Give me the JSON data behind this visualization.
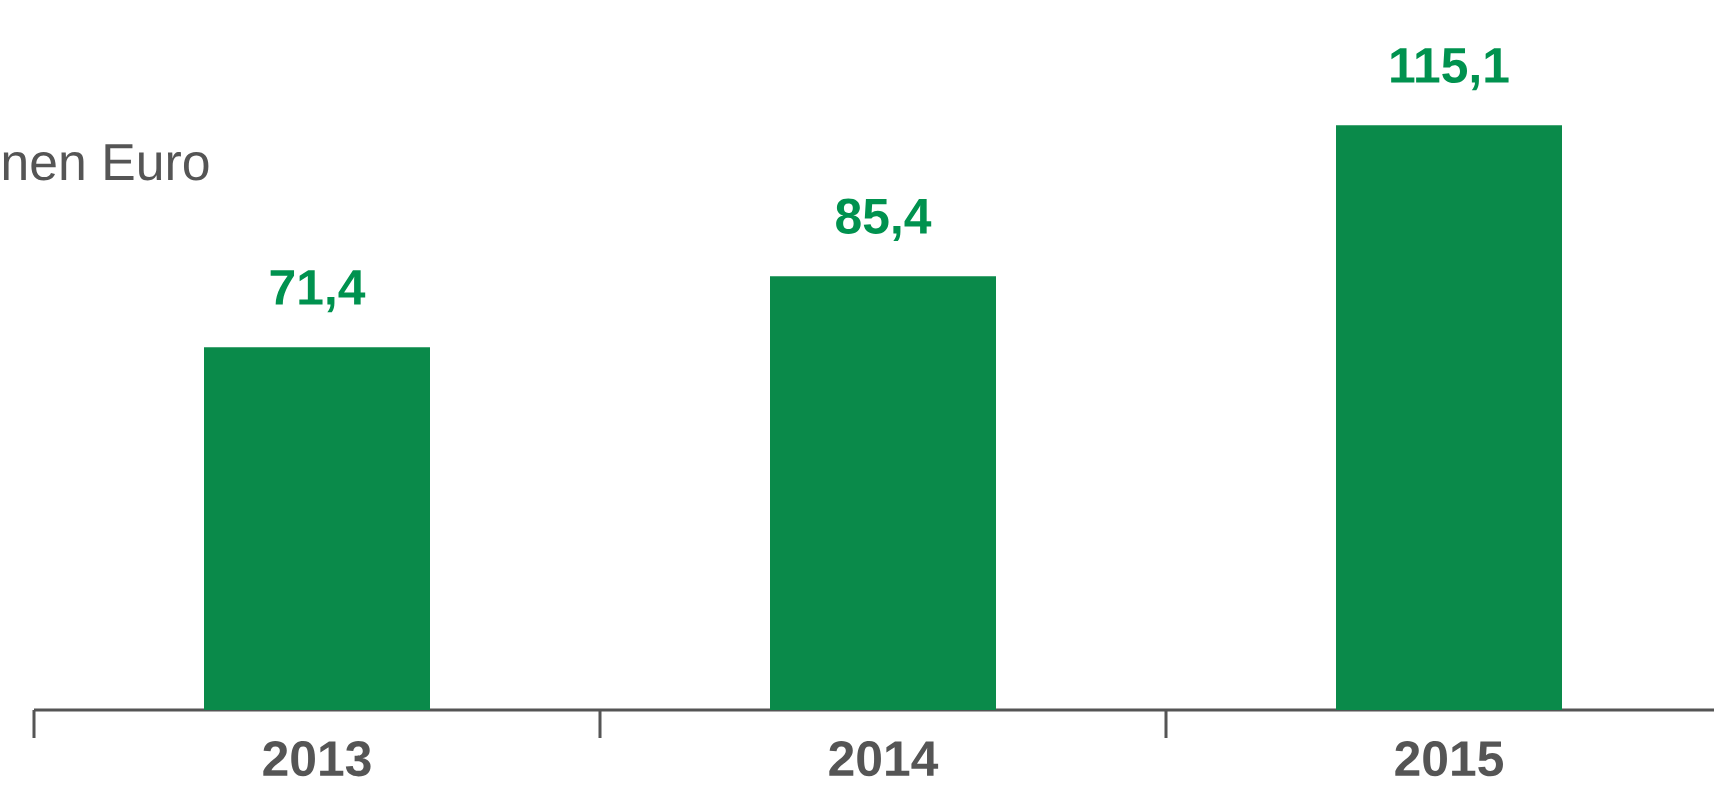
{
  "chart_data": {
    "type": "bar",
    "subtitle": "nen Euro",
    "categories": [
      "2013",
      "2014",
      "2015"
    ],
    "values": [
      71.4,
      85.4,
      115.1
    ],
    "value_labels": [
      "71,4",
      "85,4",
      "115,1"
    ],
    "color": "#0a8a4a",
    "grid": false
  }
}
